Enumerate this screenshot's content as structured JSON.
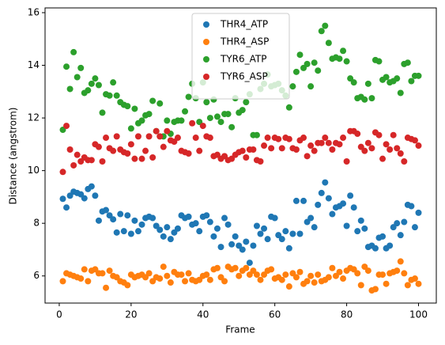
{
  "chart_data": {
    "type": "scatter",
    "xlabel": "Frame",
    "ylabel": "Distance (angstrom)",
    "x": [
      1,
      2,
      3,
      4,
      5,
      6,
      7,
      8,
      9,
      10,
      11,
      12,
      13,
      14,
      15,
      16,
      17,
      18,
      19,
      20,
      21,
      22,
      23,
      24,
      25,
      26,
      27,
      28,
      29,
      30,
      31,
      32,
      33,
      34,
      35,
      36,
      37,
      38,
      39,
      40,
      41,
      42,
      43,
      44,
      45,
      46,
      47,
      48,
      49,
      50,
      51,
      52,
      53,
      54,
      55,
      56,
      57,
      58,
      59,
      60,
      61,
      62,
      63,
      64,
      65,
      66,
      67,
      68,
      69,
      70,
      71,
      72,
      73,
      74,
      75,
      76,
      77,
      78,
      79,
      80,
      81,
      82,
      83,
      84,
      85,
      86,
      87,
      88,
      89,
      90,
      91,
      92,
      93,
      94,
      95,
      96,
      97,
      98,
      99,
      100
    ],
    "series": [
      {
        "name": "THR4_ATP",
        "color": "#1f77b4",
        "values": [
          8.93,
          8.6,
          9.05,
          9.2,
          9.15,
          9.1,
          8.95,
          9.3,
          9.4,
          9.05,
          8.1,
          8.45,
          8.5,
          8.3,
          8.15,
          7.65,
          8.35,
          7.7,
          8.3,
          7.6,
          8.1,
          7.7,
          7.95,
          8.2,
          8.25,
          8.2,
          7.9,
          7.75,
          7.5,
          7.85,
          7.4,
          7.65,
          7.8,
          8.3,
          8.2,
          8.25,
          7.95,
          8.0,
          7.7,
          8.25,
          8.3,
          8.05,
          7.5,
          7.8,
          7.1,
          8.2,
          7.95,
          7.2,
          7.5,
          7.15,
          7.0,
          7.3,
          6.5,
          7.15,
          7.9,
          7.6,
          7.8,
          7.4,
          8.25,
          8.2,
          7.55,
          7.4,
          7.7,
          7.05,
          7.6,
          8.85,
          7.6,
          8.85,
          8.05,
          8.2,
          7.85,
          8.7,
          9.15,
          9.55,
          8.95,
          8.35,
          8.6,
          8.65,
          8.75,
          7.9,
          9.05,
          8.6,
          7.7,
          8.1,
          7.8,
          7.1,
          7.15,
          7.05,
          7.45,
          7.5,
          7.05,
          7.15,
          7.85,
          8.0,
          7.55,
          8.05,
          8.7,
          8.65,
          7.85,
          8.4
        ]
      },
      {
        "name": "THR4_ASP",
        "color": "#ff7f0e",
        "values": [
          5.8,
          6.1,
          6.05,
          6.0,
          5.95,
          5.9,
          6.25,
          5.8,
          6.2,
          6.25,
          6.1,
          6.1,
          5.55,
          6.2,
          6.0,
          5.95,
          5.8,
          5.75,
          5.65,
          6.05,
          5.95,
          6.0,
          6.05,
          5.95,
          6.1,
          5.8,
          5.95,
          5.9,
          6.35,
          6.0,
          5.75,
          6.15,
          6.05,
          6.05,
          5.8,
          6.1,
          5.85,
          5.8,
          5.85,
          6.0,
          6.05,
          5.85,
          6.25,
          6.3,
          5.95,
          5.8,
          6.35,
          6.25,
          6.3,
          6.0,
          6.2,
          6.3,
          6.05,
          6.2,
          6.05,
          5.85,
          6.05,
          6.2,
          6.25,
          5.9,
          5.95,
          5.85,
          6.05,
          5.6,
          6.1,
          5.95,
          6.15,
          5.7,
          5.8,
          6.0,
          5.75,
          6.05,
          5.8,
          5.85,
          5.95,
          6.3,
          6.0,
          6.15,
          5.9,
          6.2,
          6.3,
          6.25,
          6.1,
          5.65,
          6.35,
          6.2,
          5.45,
          5.5,
          6.05,
          6.05,
          5.7,
          6.1,
          6.15,
          6.2,
          6.55,
          6.1,
          5.65,
          5.85,
          5.9,
          5.7
        ]
      },
      {
        "name": "TYR6_ATP",
        "color": "#2ca02c",
        "values": [
          11.55,
          13.95,
          13.1,
          14.5,
          13.55,
          13.9,
          12.95,
          13.05,
          13.3,
          13.5,
          13.25,
          12.2,
          12.9,
          12.85,
          13.35,
          12.85,
          12.6,
          12.5,
          12.45,
          11.6,
          12.35,
          11.8,
          11.9,
          12.1,
          12.15,
          12.65,
          11.5,
          12.55,
          11.3,
          11.9,
          11.4,
          11.85,
          11.9,
          11.9,
          12.25,
          12.8,
          13.3,
          12.75,
          11.85,
          13.35,
          12.6,
          12.0,
          12.7,
          12.05,
          11.85,
          12.15,
          12.15,
          11.65,
          12.75,
          12.2,
          12.3,
          12.6,
          12.9,
          11.35,
          11.35,
          13.1,
          13.3,
          13.65,
          13.2,
          13.25,
          13.3,
          13.05,
          12.85,
          12.4,
          13.2,
          13.75,
          14.4,
          13.9,
          14.05,
          13.2,
          14.1,
          13.8,
          15.3,
          15.5,
          14.85,
          14.25,
          14.3,
          14.25,
          14.55,
          14.15,
          13.5,
          13.35,
          12.75,
          12.8,
          12.7,
          13.3,
          12.75,
          14.2,
          14.15,
          13.45,
          13.55,
          13.35,
          13.4,
          13.5,
          12.95,
          14.05,
          14.1,
          13.4,
          13.6,
          13.6
        ]
      },
      {
        "name": "TYR6_ASP",
        "color": "#d62728",
        "values": [
          9.95,
          11.7,
          10.8,
          10.2,
          10.6,
          10.35,
          10.5,
          10.4,
          10.4,
          11.0,
          10.9,
          10.35,
          11.25,
          10.85,
          10.75,
          11.3,
          10.8,
          10.7,
          10.65,
          11.0,
          10.45,
          11.3,
          10.45,
          10.75,
          11.3,
          10.5,
          11.5,
          11.3,
          10.9,
          11.5,
          11.15,
          11.1,
          11.25,
          10.75,
          10.7,
          10.65,
          11.8,
          11.25,
          10.75,
          11.7,
          11.3,
          11.25,
          10.55,
          10.6,
          10.45,
          10.55,
          10.4,
          10.45,
          10.6,
          10.7,
          10.75,
          10.5,
          10.8,
          10.8,
          10.4,
          10.35,
          10.95,
          11.25,
          10.85,
          11.25,
          11.2,
          10.85,
          11.25,
          11.2,
          10.85,
          10.8,
          11.15,
          11.25,
          10.55,
          10.95,
          10.75,
          11.05,
          11.05,
          11.25,
          11.05,
          10.8,
          11.05,
          11.0,
          11.25,
          10.35,
          11.5,
          11.5,
          11.4,
          10.9,
          10.75,
          11.05,
          10.85,
          11.45,
          11.35,
          10.45,
          11.0,
          10.8,
          11.35,
          10.85,
          10.65,
          10.35,
          11.25,
          11.2,
          11.15,
          10.95
        ]
      }
    ],
    "xlim": [
      -3.95,
      104.95
    ],
    "xticks": [
      0,
      20,
      40,
      60,
      80,
      100
    ],
    "ylim": [
      4.97,
      16.18
    ],
    "yticks": [
      6,
      8,
      10,
      12,
      14,
      16
    ],
    "grid": false,
    "legend": "upper center"
  }
}
